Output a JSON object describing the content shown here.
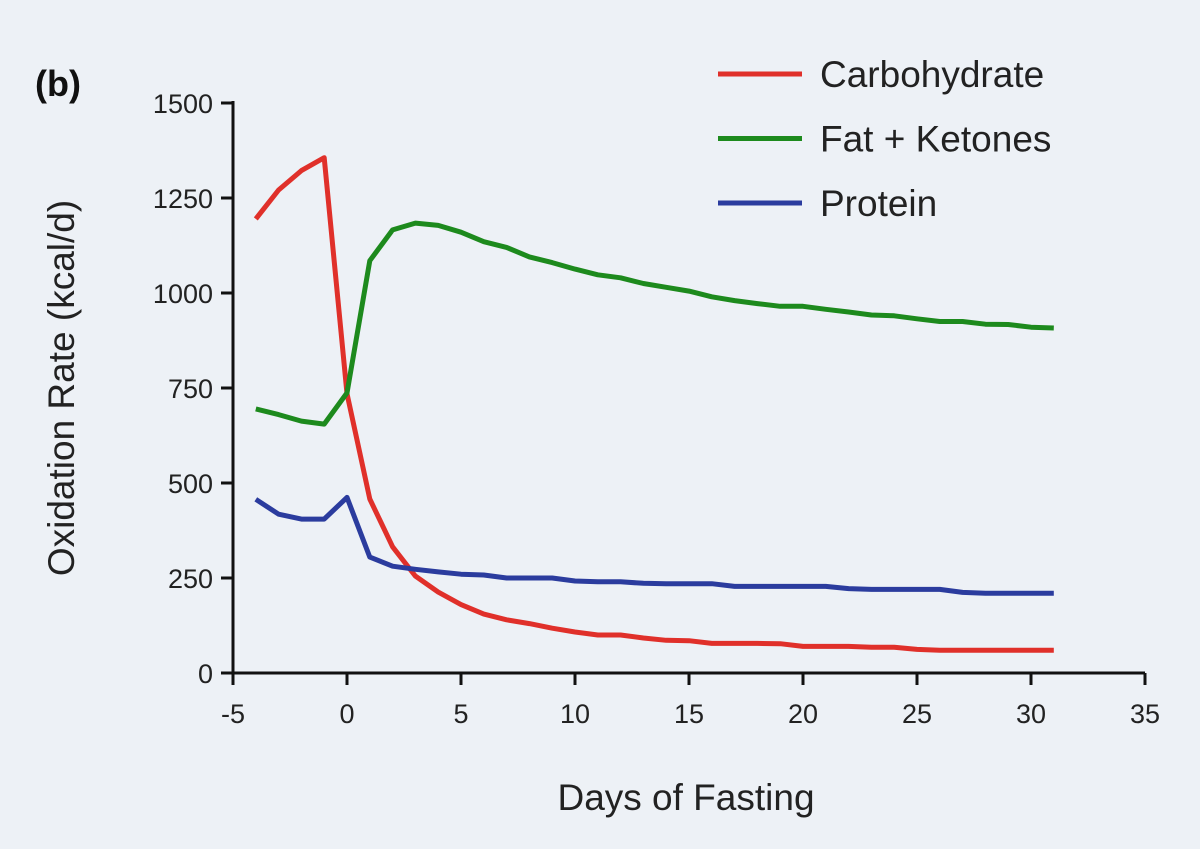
{
  "chart_data": {
    "type": "line",
    "panel_label": "(b)",
    "xlabel": "Days of Fasting",
    "ylabel": "Oxidation Rate (kcal/d)",
    "xlim": [
      -5,
      35
    ],
    "ylim": [
      0,
      1500
    ],
    "xticks": [
      -5,
      0,
      5,
      10,
      15,
      20,
      25,
      30,
      35
    ],
    "yticks": [
      0,
      250,
      500,
      750,
      1000,
      1250,
      1500
    ],
    "grid": false,
    "legend_position": "top-right",
    "x": [
      -4,
      -3,
      -2,
      -1,
      0,
      1,
      2,
      3,
      4,
      5,
      6,
      7,
      8,
      9,
      10,
      11,
      12,
      13,
      14,
      15,
      16,
      17,
      18,
      19,
      20,
      21,
      22,
      23,
      24,
      25,
      26,
      27,
      28,
      29,
      30,
      31
    ],
    "series": [
      {
        "name": "Carbohydrate",
        "color": "#e0302a",
        "values": [
          1195,
          1271,
          1322,
          1356,
          735,
          458,
          332,
          255,
          213,
          180,
          155,
          140,
          130,
          118,
          108,
          100,
          100,
          92,
          86,
          85,
          78,
          78,
          78,
          77,
          70,
          70,
          70,
          68,
          68,
          62,
          60,
          60,
          60,
          60,
          60,
          60
        ]
      },
      {
        "name": "Fat + Ketones",
        "color": "#1d8a1d",
        "values": [
          695,
          680,
          663,
          655,
          737,
          1085,
          1166,
          1184,
          1178,
          1160,
          1135,
          1120,
          1095,
          1080,
          1063,
          1048,
          1040,
          1025,
          1015,
          1005,
          990,
          980,
          972,
          965,
          965,
          957,
          950,
          942,
          940,
          932,
          925,
          925,
          918,
          917,
          910,
          908
        ]
      },
      {
        "name": "Protein",
        "color": "#2b3c9e",
        "values": [
          457,
          418,
          405,
          405,
          462,
          305,
          281,
          273,
          266,
          260,
          258,
          250,
          250,
          250,
          242,
          240,
          240,
          236,
          235,
          235,
          235,
          228,
          228,
          228,
          228,
          228,
          222,
          220,
          220,
          220,
          220,
          212,
          210,
          210,
          210,
          210
        ]
      }
    ]
  }
}
